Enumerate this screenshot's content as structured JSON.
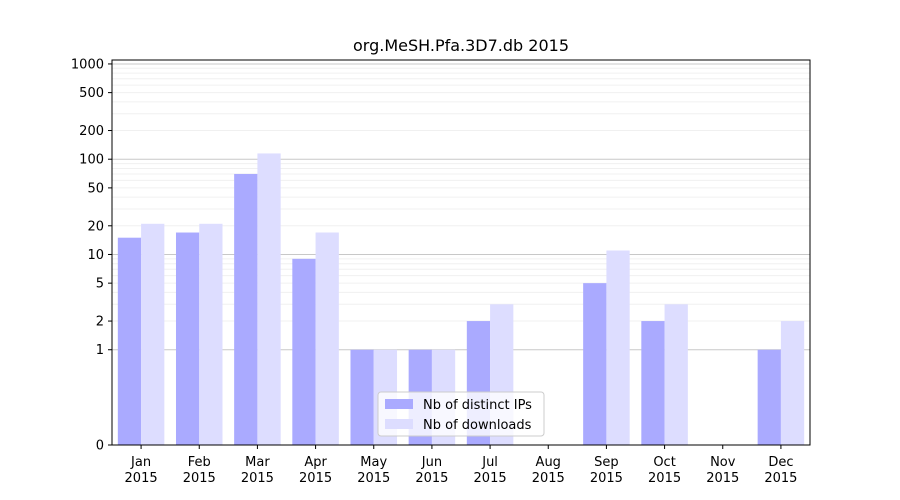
{
  "chart_data": {
    "type": "bar",
    "title": "org.MeSH.Pfa.3D7.db 2015",
    "xlabel": "",
    "ylabel": "",
    "yscale": "symlog",
    "ylim": [
      0,
      1100
    ],
    "yticks": [
      0,
      1,
      2,
      5,
      10,
      20,
      50,
      100,
      200,
      500,
      1000
    ],
    "ytick_labels": [
      "0",
      "1",
      "2",
      "5",
      "10",
      "20",
      "50",
      "100",
      "200",
      "500",
      "1000"
    ],
    "categories": [
      "Jan\n2015",
      "Feb\n2015",
      "Mar\n2015",
      "Apr\n2015",
      "May\n2015",
      "Jun\n2015",
      "Jul\n2015",
      "Aug\n2015",
      "Sep\n2015",
      "Oct\n2015",
      "Nov\n2015",
      "Dec\n2015"
    ],
    "category_lines": [
      [
        "Jan",
        "2015"
      ],
      [
        "Feb",
        "2015"
      ],
      [
        "Mar",
        "2015"
      ],
      [
        "Apr",
        "2015"
      ],
      [
        "May",
        "2015"
      ],
      [
        "Jun",
        "2015"
      ],
      [
        "Jul",
        "2015"
      ],
      [
        "Aug",
        "2015"
      ],
      [
        "Sep",
        "2015"
      ],
      [
        "Oct",
        "2015"
      ],
      [
        "Nov",
        "2015"
      ],
      [
        "Dec",
        "2015"
      ]
    ],
    "series": [
      {
        "name": "Nb of distinct IPs",
        "color": "#aaaaff",
        "values": [
          15,
          17,
          70,
          9,
          1,
          1,
          2,
          0,
          5,
          2,
          0,
          1
        ]
      },
      {
        "name": "Nb of downloads",
        "color": "#ddddff",
        "values": [
          21,
          21,
          115,
          17,
          1,
          1,
          3,
          0,
          11,
          3,
          0,
          2
        ]
      }
    ],
    "grid": true,
    "legend_position": "bottom-center"
  }
}
